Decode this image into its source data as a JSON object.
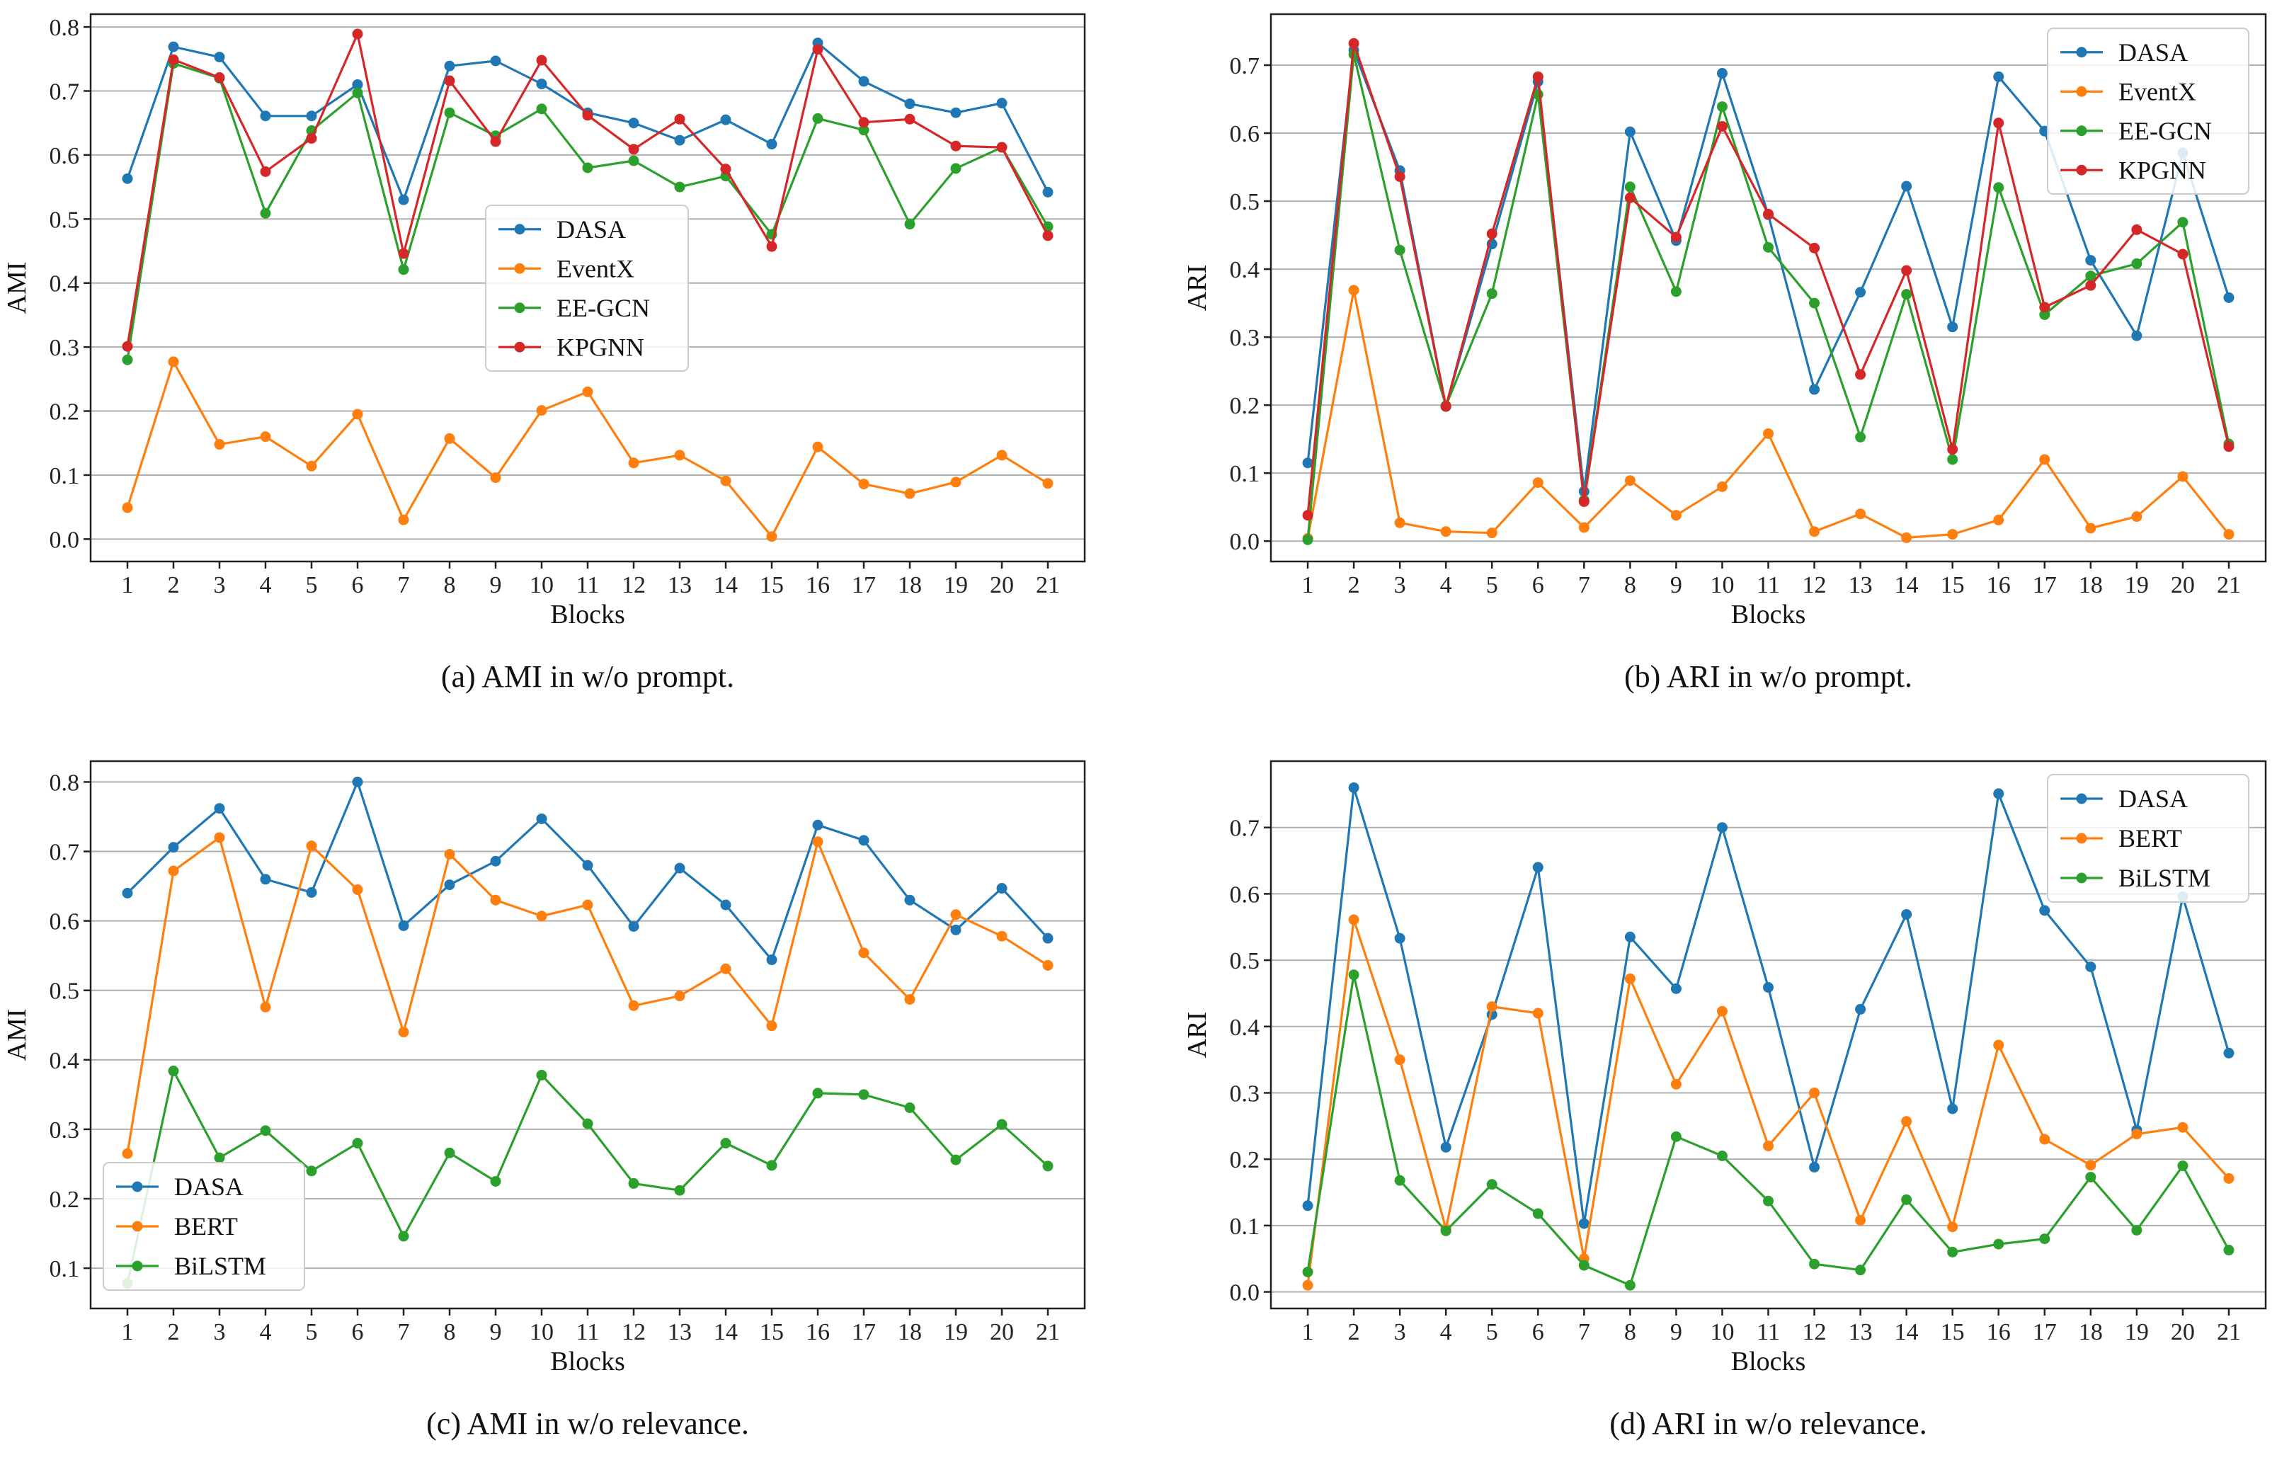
{
  "colors": {
    "DASA": "#1f77b4",
    "EventX": "#ff7f0e",
    "EE-GCN": "#2ca02c",
    "KPGNN": "#d62728",
    "BERT": "#ff7f0e",
    "BiLSTM": "#2ca02c"
  },
  "chart_data": [
    {
      "id": "a",
      "type": "line",
      "caption": "(a)  AMI in w/o prompt.",
      "xlabel": "Blocks",
      "ylabel": "AMI",
      "categories": [
        "1",
        "2",
        "3",
        "4",
        "5",
        "6",
        "7",
        "8",
        "9",
        "10",
        "11",
        "12",
        "13",
        "14",
        "15",
        "16",
        "17",
        "18",
        "19",
        "20",
        "21"
      ],
      "ylim": [
        -0.035,
        0.82
      ],
      "yticks": [
        0.0,
        0.1,
        0.2,
        0.3,
        0.4,
        0.5,
        0.6,
        0.7,
        0.8
      ],
      "ytick_labels": [
        "0.0",
        "0.1",
        "0.2",
        "0.3",
        "0.4",
        "0.5",
        "0.6",
        "0.7",
        "0.8"
      ],
      "legend_position": "center",
      "series": [
        {
          "name": "DASA",
          "color_key": "DASA",
          "values": [
            0.563,
            0.769,
            0.753,
            0.661,
            0.661,
            0.71,
            0.53,
            0.739,
            0.747,
            0.711,
            0.666,
            0.65,
            0.623,
            0.655,
            0.617,
            0.775,
            0.715,
            0.68,
            0.666,
            0.681,
            0.542
          ]
        },
        {
          "name": "EventX",
          "color_key": "EventX",
          "values": [
            0.049,
            0.277,
            0.148,
            0.16,
            0.114,
            0.195,
            0.03,
            0.157,
            0.096,
            0.201,
            0.23,
            0.119,
            0.131,
            0.091,
            0.004,
            0.144,
            0.086,
            0.071,
            0.089,
            0.131,
            0.087
          ]
        },
        {
          "name": "EE-GCN",
          "color_key": "EE-GCN",
          "values": [
            0.28,
            0.743,
            0.72,
            0.509,
            0.638,
            0.697,
            0.421,
            0.666,
            0.63,
            0.672,
            0.58,
            0.591,
            0.55,
            0.567,
            0.476,
            0.657,
            0.639,
            0.492,
            0.579,
            0.612,
            0.488
          ]
        },
        {
          "name": "KPGNN",
          "color_key": "KPGNN",
          "values": [
            0.301,
            0.749,
            0.721,
            0.574,
            0.626,
            0.789,
            0.446,
            0.716,
            0.621,
            0.748,
            0.662,
            0.609,
            0.656,
            0.578,
            0.457,
            0.765,
            0.651,
            0.656,
            0.614,
            0.612,
            0.474
          ]
        }
      ]
    },
    {
      "id": "b",
      "type": "line",
      "caption": "(b)  ARI in w/o prompt.",
      "xlabel": "Blocks",
      "ylabel": "ARI",
      "categories": [
        "1",
        "2",
        "3",
        "4",
        "5",
        "6",
        "7",
        "8",
        "9",
        "10",
        "11",
        "12",
        "13",
        "14",
        "15",
        "16",
        "17",
        "18",
        "19",
        "20",
        "21"
      ],
      "ylim": [
        -0.03,
        0.775
      ],
      "yticks": [
        0.0,
        0.1,
        0.2,
        0.3,
        0.4,
        0.5,
        0.6,
        0.7
      ],
      "ytick_labels": [
        "0.0",
        "0.1",
        "0.2",
        "0.3",
        "0.4",
        "0.5",
        "0.6",
        "0.7"
      ],
      "legend_position": "top-right",
      "series": [
        {
          "name": "DASA",
          "color_key": "DASA",
          "values": [
            0.115,
            0.722,
            0.545,
            0.198,
            0.437,
            0.676,
            0.073,
            0.602,
            0.442,
            0.688,
            0.48,
            0.223,
            0.366,
            0.522,
            0.315,
            0.683,
            0.603,
            0.413,
            0.302,
            0.571,
            0.358
          ]
        },
        {
          "name": "EventX",
          "color_key": "EventX",
          "values": [
            0.004,
            0.369,
            0.027,
            0.014,
            0.012,
            0.086,
            0.02,
            0.089,
            0.038,
            0.08,
            0.158,
            0.014,
            0.04,
            0.005,
            0.01,
            0.031,
            0.12,
            0.019,
            0.036,
            0.095,
            0.01
          ]
        },
        {
          "name": "EE-GCN",
          "color_key": "EE-GCN",
          "values": [
            0.002,
            0.716,
            0.428,
            0.199,
            0.364,
            0.657,
            0.06,
            0.521,
            0.367,
            0.639,
            0.432,
            0.35,
            0.153,
            0.363,
            0.12,
            0.52,
            0.333,
            0.39,
            0.408,
            0.469,
            0.143
          ]
        },
        {
          "name": "KPGNN",
          "color_key": "KPGNN",
          "values": [
            0.038,
            0.732,
            0.536,
            0.198,
            0.452,
            0.683,
            0.058,
            0.505,
            0.447,
            0.61,
            0.481,
            0.431,
            0.245,
            0.398,
            0.135,
            0.615,
            0.344,
            0.376,
            0.458,
            0.422,
            0.139
          ]
        }
      ]
    },
    {
      "id": "c",
      "type": "line",
      "caption": "(c)  AMI in w/o relevance.",
      "xlabel": "Blocks",
      "ylabel": "AMI",
      "categories": [
        "1",
        "2",
        "3",
        "4",
        "5",
        "6",
        "7",
        "8",
        "9",
        "10",
        "11",
        "12",
        "13",
        "14",
        "15",
        "16",
        "17",
        "18",
        "19",
        "20",
        "21"
      ],
      "ylim": [
        0.042,
        0.83
      ],
      "yticks": [
        0.1,
        0.2,
        0.3,
        0.4,
        0.5,
        0.6,
        0.7,
        0.8
      ],
      "ytick_labels": [
        "0.1",
        "0.2",
        "0.3",
        "0.4",
        "0.5",
        "0.6",
        "0.7",
        "0.8"
      ],
      "legend_position": "lower-left",
      "series": [
        {
          "name": "DASA",
          "color_key": "DASA",
          "values": [
            0.64,
            0.706,
            0.762,
            0.66,
            0.641,
            0.8,
            0.593,
            0.652,
            0.686,
            0.747,
            0.68,
            0.592,
            0.676,
            0.623,
            0.544,
            0.738,
            0.716,
            0.63,
            0.587,
            0.647,
            0.575
          ]
        },
        {
          "name": "BERT",
          "color_key": "BERT",
          "values": [
            0.265,
            0.672,
            0.72,
            0.476,
            0.708,
            0.645,
            0.44,
            0.696,
            0.63,
            0.607,
            0.623,
            0.478,
            0.492,
            0.531,
            0.449,
            0.714,
            0.554,
            0.487,
            0.609,
            0.578,
            0.536
          ]
        },
        {
          "name": "BiLSTM",
          "color_key": "BiLSTM",
          "values": [
            0.078,
            0.384,
            0.259,
            0.298,
            0.24,
            0.28,
            0.146,
            0.266,
            0.225,
            0.378,
            0.308,
            0.222,
            0.212,
            0.28,
            0.248,
            0.352,
            0.35,
            0.331,
            0.256,
            0.307,
            0.247
          ]
        }
      ]
    },
    {
      "id": "d",
      "type": "line",
      "caption": "(d)  ARI in w/o relevance.",
      "xlabel": "Blocks",
      "ylabel": "ARI",
      "categories": [
        "1",
        "2",
        "3",
        "4",
        "5",
        "6",
        "7",
        "8",
        "9",
        "10",
        "11",
        "12",
        "13",
        "14",
        "15",
        "16",
        "17",
        "18",
        "19",
        "20",
        "21"
      ],
      "ylim": [
        -0.025,
        0.8
      ],
      "yticks": [
        0.0,
        0.1,
        0.2,
        0.3,
        0.4,
        0.5,
        0.6,
        0.7
      ],
      "ytick_labels": [
        "0.0",
        "0.1",
        "0.2",
        "0.3",
        "0.4",
        "0.5",
        "0.6",
        "0.7"
      ],
      "legend_position": "top-right",
      "series": [
        {
          "name": "DASA",
          "color_key": "DASA",
          "values": [
            0.13,
            0.76,
            0.533,
            0.218,
            0.418,
            0.64,
            0.103,
            0.535,
            0.457,
            0.7,
            0.459,
            0.188,
            0.426,
            0.569,
            0.276,
            0.751,
            0.575,
            0.49,
            0.244,
            0.596,
            0.36
          ]
        },
        {
          "name": "BERT",
          "color_key": "BERT",
          "values": [
            0.01,
            0.561,
            0.35,
            0.095,
            0.43,
            0.42,
            0.05,
            0.472,
            0.313,
            0.423,
            0.22,
            0.3,
            0.108,
            0.257,
            0.098,
            0.372,
            0.23,
            0.191,
            0.238,
            0.248,
            0.171
          ]
        },
        {
          "name": "BiLSTM",
          "color_key": "BiLSTM",
          "values": [
            0.03,
            0.478,
            0.168,
            0.092,
            0.162,
            0.118,
            0.04,
            0.01,
            0.234,
            0.205,
            0.137,
            0.042,
            0.033,
            0.139,
            0.06,
            0.072,
            0.08,
            0.173,
            0.093,
            0.19,
            0.063
          ]
        }
      ]
    }
  ]
}
